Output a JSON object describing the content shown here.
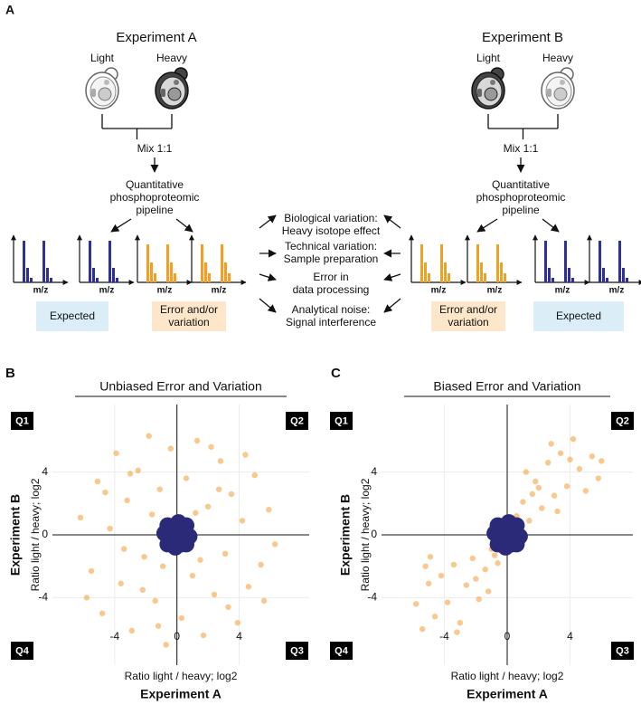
{
  "panel_a": {
    "label": "A",
    "experiments": [
      {
        "title": "Experiment A",
        "light": "Light",
        "heavy": "Heavy",
        "mix": "Mix 1:1",
        "pipeline": [
          "Quantitative",
          "phosphoproteomic",
          "pipeline"
        ],
        "axis_label": "m/z",
        "expected": "Expected",
        "error": [
          "Error and/or",
          "variation"
        ]
      },
      {
        "title": "Experiment B",
        "light": "Light",
        "heavy": "Heavy",
        "mix": "Mix 1:1",
        "pipeline": [
          "Quantitative",
          "phosphoproteomic",
          "pipeline"
        ],
        "axis_label": "m/z",
        "expected": "Expected",
        "error": [
          "Error and/or",
          "variation"
        ]
      }
    ],
    "sources": [
      [
        "Biological variation:",
        "Heavy isotope effect"
      ],
      [
        "Technical variation:",
        "Sample preparation"
      ],
      [
        "Error in",
        "data processing"
      ],
      [
        "Analytical noise:",
        "Signal interference"
      ]
    ]
  },
  "chart_data": [
    {
      "type": "scatter",
      "panel_label": "B",
      "title": "Unbiased Error and Variation",
      "xlabel": "Ratio light / heavy; log2",
      "ylabel": "Ratio light / heavy; log2",
      "xtitle": "Experiment A",
      "ytitle": "Experiment B",
      "quadrant_labels": [
        "Q1",
        "Q2",
        "Q3",
        "Q4"
      ],
      "xlim": [
        -8,
        8.5
      ],
      "ylim": [
        -8.3,
        8.3
      ],
      "xticks": [
        -4,
        0,
        4
      ],
      "yticks": [
        -4,
        0,
        4
      ],
      "grid": true,
      "series": [
        {
          "color": "#f5a443",
          "x": [
            -6.2,
            -5.5,
            -5.1,
            -4.8,
            -4.3,
            -3.9,
            -3.6,
            -3.2,
            -2.9,
            -2.5,
            -2.1,
            -1.8,
            -1.4,
            -1.1,
            -0.7,
            -0.4,
            0.3,
            0.6,
            1.0,
            1.3,
            1.7,
            2.0,
            2.4,
            2.8,
            3.1,
            3.5,
            3.9,
            4.2,
            4.6,
            5.0,
            5.4,
            5.9,
            6.3,
            -5.8,
            -4.6,
            -3.4,
            -2.2,
            -1.6,
            -0.9,
            1.2,
            2.2,
            3.3,
            4.4,
            5.6,
            -3.0,
            -1.2,
            1.5,
            2.7
          ],
          "values": [
            1.1,
            -2.3,
            3.4,
            -5.0,
            0.4,
            5.2,
            -3.1,
            2.2,
            -6.1,
            4.1,
            -1.4,
            6.3,
            -4.2,
            2.9,
            -7.0,
            5.5,
            -5.3,
            3.6,
            -2.6,
            6.0,
            -6.4,
            1.8,
            -3.8,
            4.7,
            -1.2,
            2.6,
            -5.6,
            0.9,
            -3.3,
            3.8,
            -1.9,
            1.6,
            -0.6,
            -4.0,
            2.7,
            -0.9,
            -3.5,
            1.3,
            -2.0,
            1.4,
            5.6,
            -4.6,
            5.1,
            -4.2,
            3.9,
            -5.8,
            -1.6,
            2.9
          ]
        },
        {
          "color": "#2b2a78",
          "x": [
            0,
            0.5,
            -0.5,
            0.3,
            -0.4,
            0.8,
            -0.8,
            0.1,
            -0.1,
            0.6,
            -0.6,
            0.6,
            -0.6
          ],
          "values": [
            0,
            0.4,
            0.3,
            -0.6,
            -0.5,
            -0.1,
            0.1,
            0.8,
            -0.8,
            0.6,
            -0.6,
            -0.6,
            0.6
          ]
        }
      ]
    },
    {
      "type": "scatter",
      "panel_label": "C",
      "title": "Biased Error and Variation",
      "xlabel": "Ratio light / heavy; log2",
      "ylabel": "Ratio light / heavy; log2",
      "xtitle": "Experiment A",
      "ytitle": "Experiment B",
      "quadrant_labels": [
        "Q1",
        "Q2",
        "Q3",
        "Q4"
      ],
      "xlim": [
        -8,
        8
      ],
      "ylim": [
        -8.3,
        8.3
      ],
      "xticks": [
        -4,
        0,
        4
      ],
      "yticks": [
        -4,
        0,
        4
      ],
      "grid": true,
      "series": [
        {
          "color": "#f5a443",
          "x": [
            -5.8,
            -5.4,
            -5.0,
            -4.6,
            -4.2,
            -3.8,
            -3.4,
            -3.0,
            -2.6,
            -2.2,
            -1.8,
            -1.4,
            -1.0,
            -0.6,
            -4.9,
            -3.2,
            -2.0,
            -1.2,
            -5.2,
            -0.8,
            0.6,
            1.0,
            1.4,
            1.8,
            2.2,
            2.6,
            3.0,
            3.4,
            3.8,
            4.2,
            4.6,
            5.0,
            5.4,
            5.8,
            1.2,
            2.0,
            3.2,
            4.0,
            2.8,
            6.0,
            0.9,
            1.6
          ],
          "values": [
            -4.4,
            -6.0,
            -3.1,
            -5.2,
            -2.6,
            -4.3,
            -1.9,
            -5.6,
            -3.2,
            -1.5,
            -4.1,
            -2.2,
            -0.9,
            -1.8,
            -1.4,
            -6.2,
            -2.8,
            -3.6,
            -2.0,
            -1.3,
            1.2,
            2.1,
            0.9,
            3.4,
            1.7,
            4.6,
            2.5,
            5.2,
            3.1,
            6.1,
            4.2,
            2.8,
            5.0,
            3.6,
            4.0,
            3.0,
            1.5,
            4.8,
            5.8,
            4.7,
            0.6,
            2.6
          ]
        },
        {
          "color": "#2b2a78",
          "x": [
            0,
            0.5,
            -0.5,
            0.3,
            -0.4,
            0.8,
            -0.8,
            0.1,
            -0.1,
            0.6,
            -0.6,
            0.6,
            -0.6
          ],
          "values": [
            0,
            0.4,
            0.3,
            -0.6,
            -0.5,
            -0.1,
            0.1,
            0.8,
            -0.8,
            0.6,
            -0.6,
            -0.6,
            0.6
          ]
        }
      ]
    }
  ]
}
